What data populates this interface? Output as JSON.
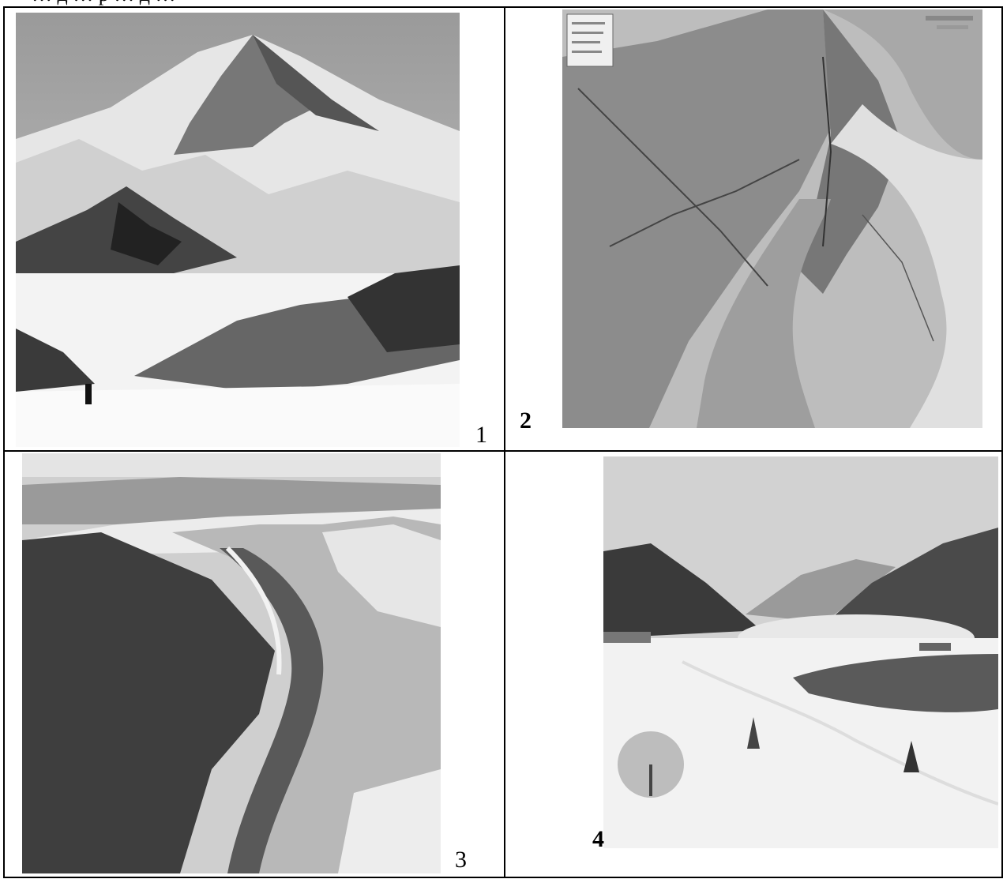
{
  "page_top_text": "… д … р … д …",
  "cells": [
    {
      "number": "1",
      "bold": false,
      "subject": "snow-covered volcano and mountain range with a skier"
    },
    {
      "number": "2",
      "bold": true,
      "subject": "grayscale relief map of a coastline and bay",
      "legend_lines": [
        "",
        "",
        "",
        ""
      ]
    },
    {
      "number": "3",
      "bold": false,
      "subject": "aerial view of a river valley between forested snowy ridges"
    },
    {
      "number": "4",
      "bold": true,
      "subject": "snowy river valley with houses, trees and avalanche mist"
    }
  ]
}
